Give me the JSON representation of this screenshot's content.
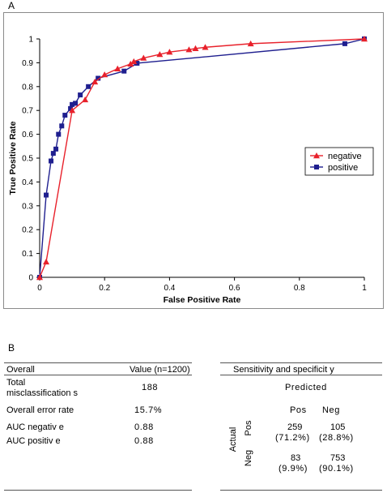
{
  "panel_a_label": "A",
  "panel_b_label": "B",
  "chart_data": {
    "type": "line",
    "xlabel": "False Positive Rate",
    "ylabel": "True Positive Rate",
    "xlim": [
      0,
      1
    ],
    "ylim": [
      0,
      1
    ],
    "x_ticks": [
      "0",
      "0.2",
      "0.4",
      "0.6",
      "0.8",
      "1"
    ],
    "y_ticks": [
      "0",
      "0.1",
      "0.2",
      "0.3",
      "0.4",
      "0.5",
      "0.6",
      "0.7",
      "0.8",
      "0.9",
      "1"
    ],
    "grid": false,
    "legend_position": "right",
    "series": [
      {
        "name": "negative",
        "color": "#e8212b",
        "marker": "triangle",
        "points": [
          [
            0,
            0
          ],
          [
            0.02,
            0.065
          ],
          [
            0.1,
            0.7
          ],
          [
            0.14,
            0.745
          ],
          [
            0.17,
            0.82
          ],
          [
            0.2,
            0.85
          ],
          [
            0.24,
            0.875
          ],
          [
            0.28,
            0.895
          ],
          [
            0.29,
            0.905
          ],
          [
            0.32,
            0.92
          ],
          [
            0.37,
            0.935
          ],
          [
            0.4,
            0.945
          ],
          [
            0.46,
            0.955
          ],
          [
            0.48,
            0.96
          ],
          [
            0.51,
            0.965
          ],
          [
            0.65,
            0.98
          ],
          [
            1,
            1
          ]
        ]
      },
      {
        "name": "positive",
        "color": "#1f1f8f",
        "marker": "square",
        "points": [
          [
            0,
            0
          ],
          [
            0.02,
            0.345
          ],
          [
            0.035,
            0.488
          ],
          [
            0.042,
            0.52
          ],
          [
            0.05,
            0.538
          ],
          [
            0.058,
            0.6
          ],
          [
            0.068,
            0.635
          ],
          [
            0.078,
            0.68
          ],
          [
            0.095,
            0.708
          ],
          [
            0.1,
            0.725
          ],
          [
            0.11,
            0.73
          ],
          [
            0.125,
            0.765
          ],
          [
            0.15,
            0.8
          ],
          [
            0.18,
            0.835
          ],
          [
            0.26,
            0.865
          ],
          [
            0.3,
            0.898
          ],
          [
            0.94,
            0.98
          ],
          [
            1,
            1
          ]
        ]
      }
    ]
  },
  "table_left": {
    "header_col1": "Overall",
    "header_col2": "Value (n=1200)",
    "rows": [
      {
        "label_line1": "Total",
        "label_line2": "misclassification s",
        "value": "188"
      },
      {
        "label": "Overall error rate",
        "value": "15.7%"
      },
      {
        "label": "AUC negativ e",
        "value": "0.88"
      },
      {
        "label": "AUC positiv e",
        "value": "0.88"
      }
    ]
  },
  "table_right": {
    "header": "Sensitivity and specificit y",
    "predicted_label": "Predicted",
    "col_pos": "Pos",
    "col_neg": "Neg",
    "actual_label": "Actual",
    "row_pos_label": "Pos",
    "row_neg_label": "Neg",
    "cells": {
      "pos_pos_count": "259",
      "pos_pos_pct": "(71.2%)",
      "pos_neg_count": "105",
      "pos_neg_pct": "(28.8%)",
      "neg_pos_count": "83",
      "neg_pos_pct": "(9.9%)",
      "neg_neg_count": "753",
      "neg_neg_pct": "(90.1%)"
    }
  }
}
